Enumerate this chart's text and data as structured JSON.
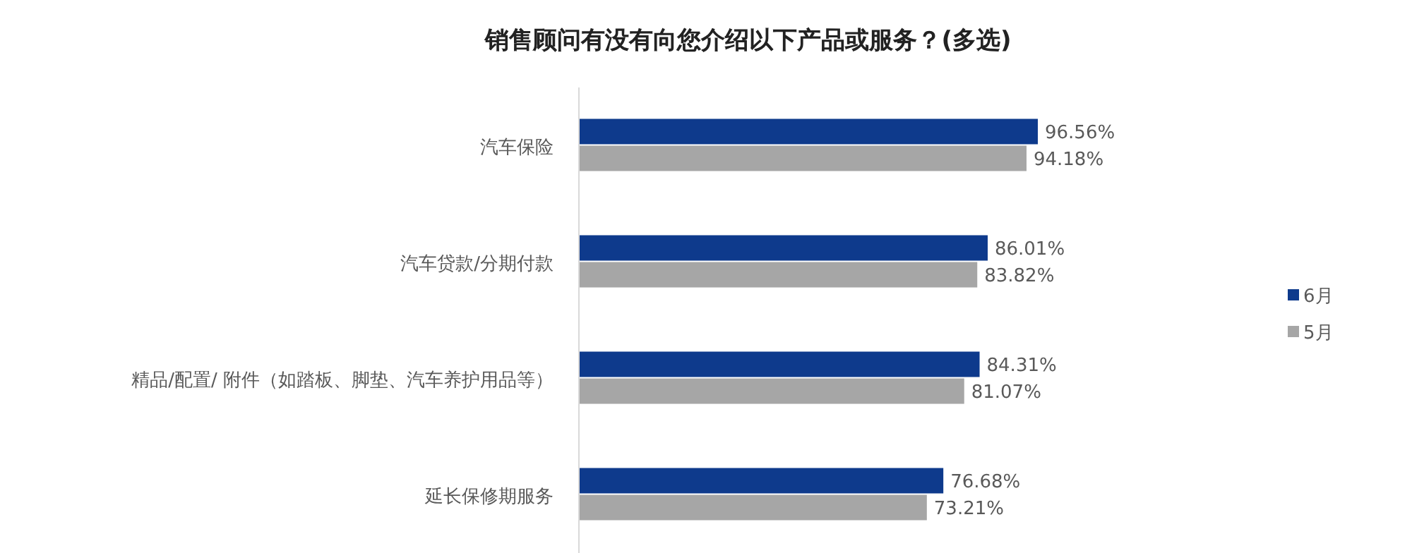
{
  "chart_data": {
    "type": "bar",
    "orientation": "horizontal",
    "title": "销售顾问有没有向您介绍以下产品或服务？(多选)",
    "categories": [
      "汽车保险",
      "汽车贷款/分期付款",
      "精品/配置/ 附件（如踏板、脚垫、汽车养护用品等）",
      "延长保修期服务"
    ],
    "series": [
      {
        "name": "6月",
        "color": "#0e3a8c",
        "values": [
          96.56,
          86.01,
          84.31,
          76.68
        ],
        "value_labels": [
          "96.56%",
          "86.01%",
          "84.31%",
          "76.68%"
        ]
      },
      {
        "name": "5月",
        "color": "#a6a6a6",
        "values": [
          94.18,
          83.82,
          81.07,
          73.21
        ],
        "value_labels": [
          "94.18%",
          "83.82%",
          "81.07%",
          "73.21%"
        ]
      }
    ],
    "legend": "right"
  }
}
